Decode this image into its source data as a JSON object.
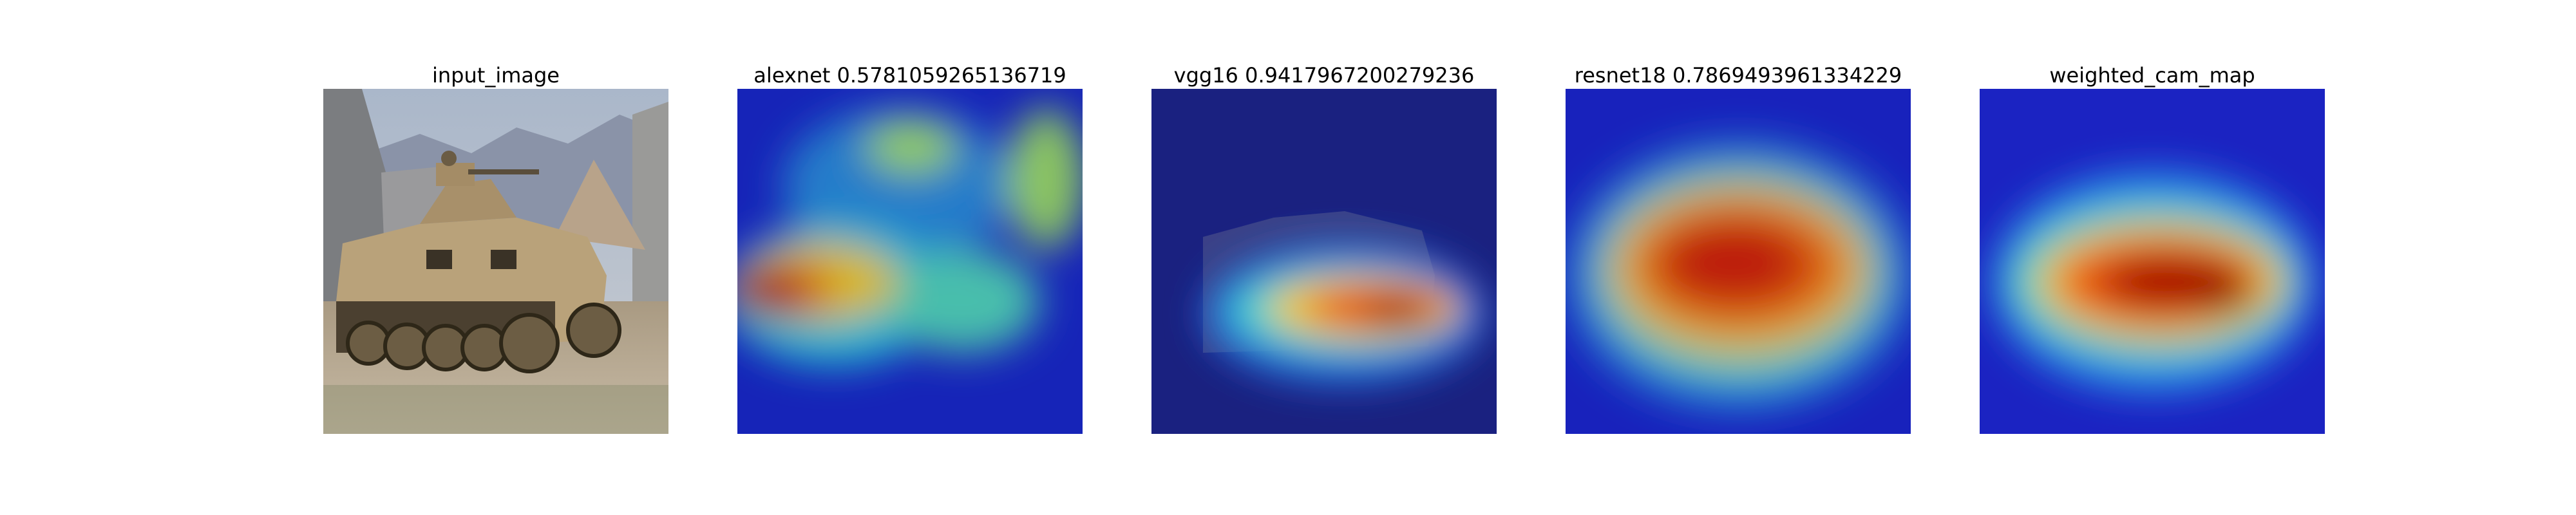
{
  "figure": {
    "panels": [
      {
        "title": "input_image"
      },
      {
        "title": "alexnet 0.5781059265136719"
      },
      {
        "title": "vgg16 0.9417967200279236"
      },
      {
        "title": "resnet18 0.7869493961334229"
      },
      {
        "title": "weighted_cam_map"
      }
    ]
  },
  "colors": {
    "sky": "#aeb9c9",
    "mountain": "#8a93a8",
    "ground": "#b6a78f",
    "vehicle": "#b9a27a",
    "wheels": "#4b4030",
    "heat_low": "#1522c8",
    "heat_mid": "#29c7f0",
    "heat_high": "#f0c21c",
    "heat_peak": "#a80d05"
  }
}
